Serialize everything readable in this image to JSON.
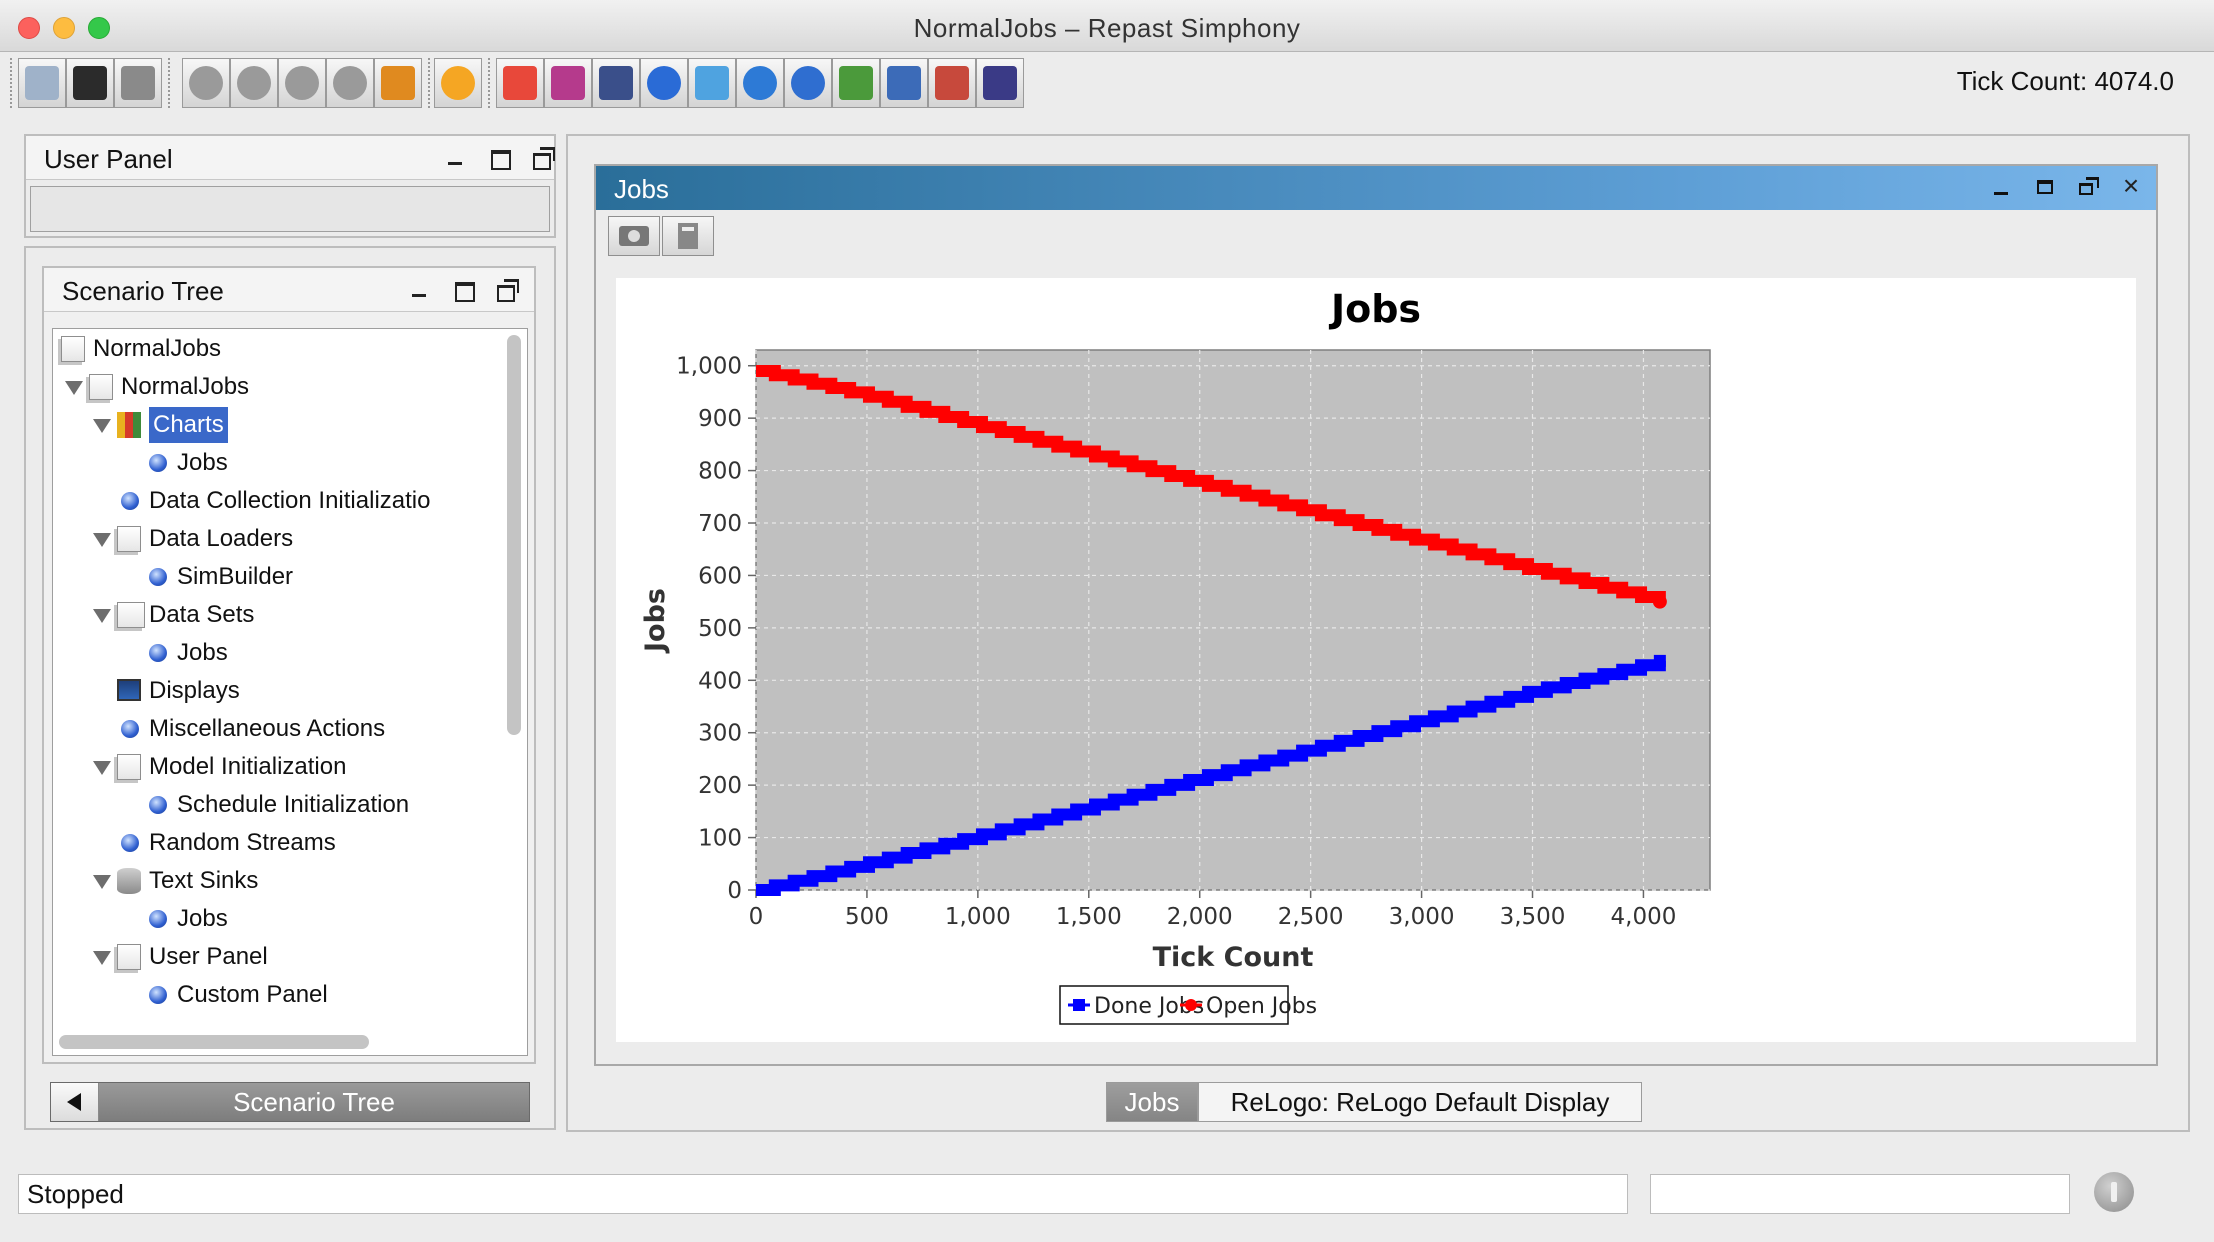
{
  "window": {
    "title": "NormalJobs – Repast Simphony"
  },
  "toolbar": {
    "tick_count": "Tick Count: 4074.0",
    "buttons": [
      {
        "name": "open-icon",
        "color": "#9fb2c9"
      },
      {
        "name": "save-icon",
        "color": "#2b2b2b"
      },
      {
        "name": "database-icon",
        "color": "#8a8a8a"
      },
      {
        "name": "power-icon",
        "color": "#9a9a9a"
      },
      {
        "name": "play-icon",
        "color": "#9a9a9a"
      },
      {
        "name": "fast-forward-icon",
        "color": "#9a9a9a"
      },
      {
        "name": "stop-icon",
        "color": "#9a9a9a"
      },
      {
        "name": "reset-icon",
        "color": "#e08a1f"
      },
      {
        "name": "lightning-icon",
        "color": "#f5a623"
      },
      {
        "name": "palette-icon",
        "color": "#e8483a"
      },
      {
        "name": "pie-chart-icon",
        "color": "#b53a8c"
      },
      {
        "name": "calculator-icon",
        "color": "#3a4f8a"
      },
      {
        "name": "globe-icon",
        "color": "#2a6bd6"
      },
      {
        "name": "magnifier-icon",
        "color": "#4fa3e0"
      },
      {
        "name": "network-globe-icon",
        "color": "#2d7ad6"
      },
      {
        "name": "globe-gear-icon",
        "color": "#2f6ed0"
      },
      {
        "name": "agents-icon",
        "color": "#4b9a3b"
      },
      {
        "name": "flowchart-icon",
        "color": "#3c6bb8"
      },
      {
        "name": "spreadsheet-icon",
        "color": "#c7493c"
      },
      {
        "name": "tractor-icon",
        "color": "#3a3a86"
      }
    ]
  },
  "user_panel": {
    "title": "User Panel"
  },
  "scenario_tree": {
    "title": "Scenario Tree",
    "tab_label": "Scenario Tree",
    "items": [
      {
        "label": "NormalJobs"
      },
      {
        "label": "NormalJobs"
      },
      {
        "label": "Charts"
      },
      {
        "label": "Jobs"
      },
      {
        "label": "Data Collection Initializatio"
      },
      {
        "label": "Data Loaders"
      },
      {
        "label": "SimBuilder"
      },
      {
        "label": "Data Sets"
      },
      {
        "label": "Jobs"
      },
      {
        "label": "Displays"
      },
      {
        "label": "Miscellaneous Actions"
      },
      {
        "label": "Model Initialization"
      },
      {
        "label": "Schedule Initialization"
      },
      {
        "label": "Random Streams"
      },
      {
        "label": "Text Sinks"
      },
      {
        "label": "Jobs"
      },
      {
        "label": "User Panel"
      },
      {
        "label": "Custom Panel"
      }
    ]
  },
  "jobs_window": {
    "title": "Jobs",
    "tabs": [
      {
        "label": "Jobs"
      },
      {
        "label": "ReLogo: ReLogo Default Display"
      }
    ]
  },
  "chart_data": {
    "type": "line",
    "title": "Jobs",
    "xlabel": "Tick Count",
    "ylabel": "Jobs",
    "xlim": [
      0,
      4300
    ],
    "ylim": [
      0,
      1030
    ],
    "x_ticks": [
      "0",
      "500",
      "1,000",
      "1,500",
      "2,000",
      "2,500",
      "3,000",
      "3,500",
      "4,000"
    ],
    "y_ticks": [
      "0",
      "100",
      "200",
      "300",
      "400",
      "500",
      "600",
      "700",
      "800",
      "900",
      "1,000"
    ],
    "grid": true,
    "legend": "bottom",
    "background": "#c0c0c0",
    "series": [
      {
        "name": "Done Jobs",
        "color": "#0000ff",
        "x": [
          0,
          500,
          1000,
          1500,
          2000,
          2500,
          3000,
          3500,
          4074
        ],
        "y": [
          0,
          52,
          104,
          160,
          215,
          270,
          325,
          380,
          437
        ]
      },
      {
        "name": "Open Jobs",
        "color": "#ff0000",
        "x": [
          0,
          500,
          1000,
          1500,
          2000,
          2500,
          3000,
          3500,
          4074
        ],
        "y": [
          990,
          942,
          885,
          830,
          775,
          720,
          665,
          610,
          550
        ]
      }
    ]
  },
  "status": {
    "text": "Stopped"
  }
}
